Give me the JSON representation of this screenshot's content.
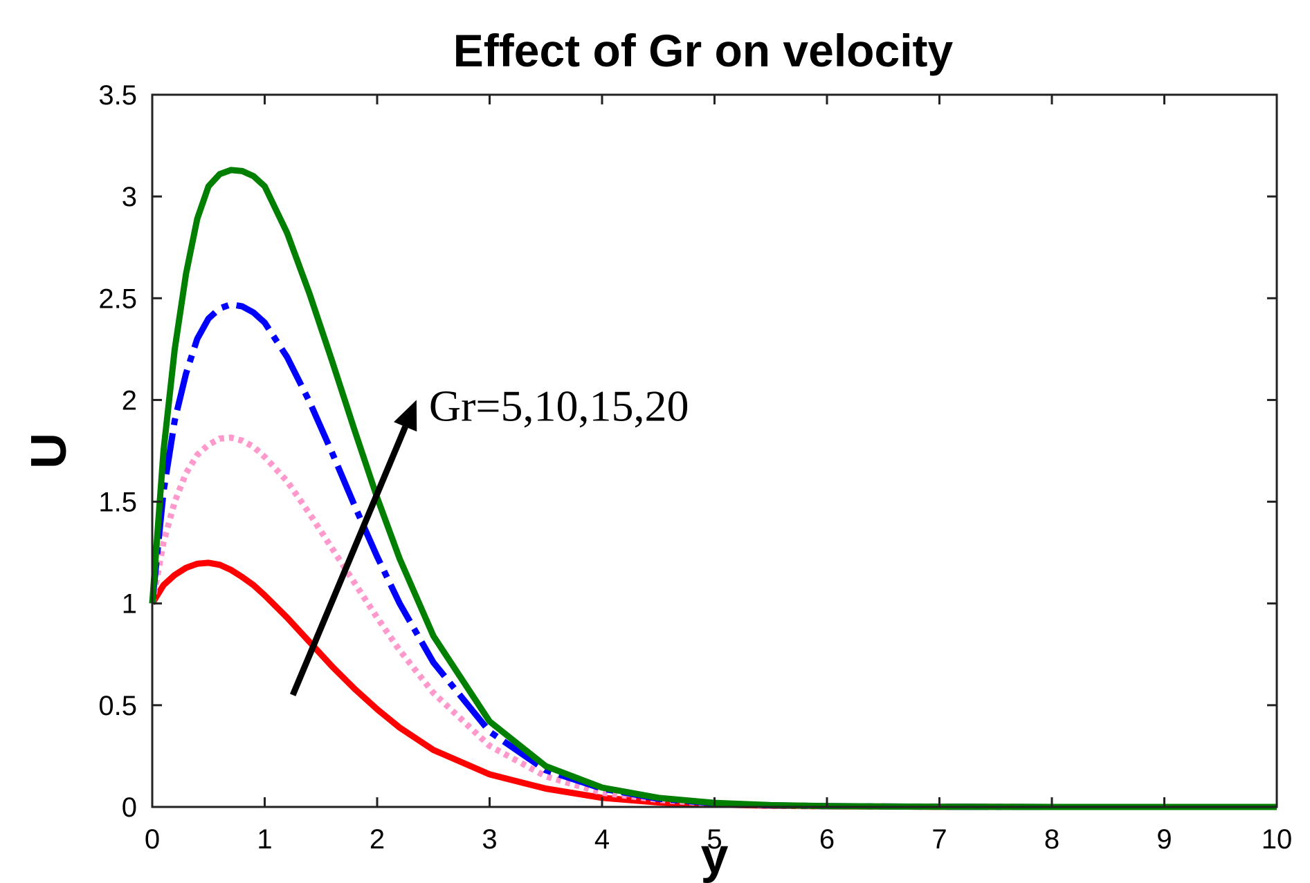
{
  "chart_data": {
    "type": "line",
    "title": "Effect of Gr on velocity",
    "xlabel": "y",
    "ylabel": "U",
    "xlim": [
      0,
      10
    ],
    "ylim": [
      0,
      3.5
    ],
    "xticks": [
      0,
      1,
      2,
      3,
      4,
      5,
      6,
      7,
      8,
      9,
      10
    ],
    "yticks": [
      0,
      0.5,
      1,
      1.5,
      2,
      2.5,
      3,
      3.5
    ],
    "xtick_labels": [
      "0",
      "1",
      "2",
      "3",
      "4",
      "5",
      "6",
      "7",
      "8",
      "9",
      "10"
    ],
    "ytick_labels": [
      "0",
      "0.5",
      "1",
      "1.5",
      "2",
      "2.5",
      "3",
      "3.5"
    ],
    "grid": false,
    "annotation": {
      "text": "Gr=5,10,15,20",
      "arrow_from": [
        1.25,
        0.55
      ],
      "arrow_to": [
        2.35,
        2.0
      ]
    },
    "series": [
      {
        "name": "Gr=5",
        "color": "#ff0000",
        "style": "solid",
        "x": [
          0,
          0.1,
          0.2,
          0.3,
          0.4,
          0.5,
          0.6,
          0.7,
          0.8,
          0.9,
          1.0,
          1.2,
          1.4,
          1.6,
          1.8,
          2.0,
          2.2,
          2.5,
          3.0,
          3.5,
          4.0,
          4.5,
          5.0,
          5.5,
          6.0,
          7.0,
          8.0,
          9.0,
          10.0
        ],
        "values": [
          1.0,
          1.09,
          1.14,
          1.175,
          1.195,
          1.2,
          1.19,
          1.165,
          1.13,
          1.09,
          1.04,
          0.93,
          0.81,
          0.69,
          0.58,
          0.48,
          0.39,
          0.28,
          0.16,
          0.09,
          0.045,
          0.022,
          0.012,
          0.006,
          0.003,
          0.001,
          0.0,
          0.0,
          0.0
        ]
      },
      {
        "name": "Gr=10",
        "color": "#ff99cc",
        "style": "dotted",
        "x": [
          0,
          0.1,
          0.2,
          0.3,
          0.4,
          0.5,
          0.6,
          0.7,
          0.8,
          0.9,
          1.0,
          1.2,
          1.4,
          1.6,
          1.8,
          2.0,
          2.2,
          2.5,
          3.0,
          3.5,
          4.0,
          4.5,
          5.0,
          5.5,
          6.0,
          7.0,
          8.0,
          9.0,
          10.0
        ],
        "values": [
          1.0,
          1.3,
          1.5,
          1.64,
          1.73,
          1.78,
          1.81,
          1.815,
          1.8,
          1.77,
          1.72,
          1.6,
          1.44,
          1.27,
          1.1,
          0.93,
          0.77,
          0.56,
          0.3,
          0.15,
          0.07,
          0.035,
          0.015,
          0.007,
          0.003,
          0.001,
          0.0,
          0.0,
          0.0
        ]
      },
      {
        "name": "Gr=15",
        "color": "#0000ff",
        "style": "dashdot",
        "x": [
          0,
          0.1,
          0.2,
          0.3,
          0.4,
          0.5,
          0.6,
          0.7,
          0.8,
          0.9,
          1.0,
          1.2,
          1.4,
          1.6,
          1.8,
          2.0,
          2.2,
          2.5,
          3.0,
          3.5,
          4.0,
          4.5,
          5.0,
          5.5,
          6.0,
          7.0,
          8.0,
          9.0,
          10.0
        ],
        "values": [
          1.0,
          1.55,
          1.9,
          2.13,
          2.3,
          2.4,
          2.45,
          2.47,
          2.46,
          2.43,
          2.38,
          2.21,
          1.99,
          1.74,
          1.48,
          1.23,
          1.0,
          0.71,
          0.37,
          0.18,
          0.09,
          0.04,
          0.018,
          0.008,
          0.004,
          0.001,
          0.0,
          0.0,
          0.0
        ]
      },
      {
        "name": "Gr=20",
        "color": "#007f00",
        "style": "solid",
        "x": [
          0,
          0.1,
          0.2,
          0.3,
          0.4,
          0.5,
          0.6,
          0.7,
          0.8,
          0.9,
          1.0,
          1.2,
          1.4,
          1.6,
          1.8,
          2.0,
          2.2,
          2.5,
          3.0,
          3.5,
          4.0,
          4.5,
          5.0,
          5.5,
          6.0,
          7.0,
          8.0,
          9.0,
          10.0
        ],
        "values": [
          1.0,
          1.75,
          2.25,
          2.62,
          2.89,
          3.05,
          3.11,
          3.13,
          3.125,
          3.1,
          3.05,
          2.82,
          2.52,
          2.19,
          1.85,
          1.52,
          1.22,
          0.84,
          0.42,
          0.2,
          0.095,
          0.045,
          0.02,
          0.009,
          0.004,
          0.001,
          0.0,
          0.0,
          0.0
        ]
      }
    ]
  }
}
